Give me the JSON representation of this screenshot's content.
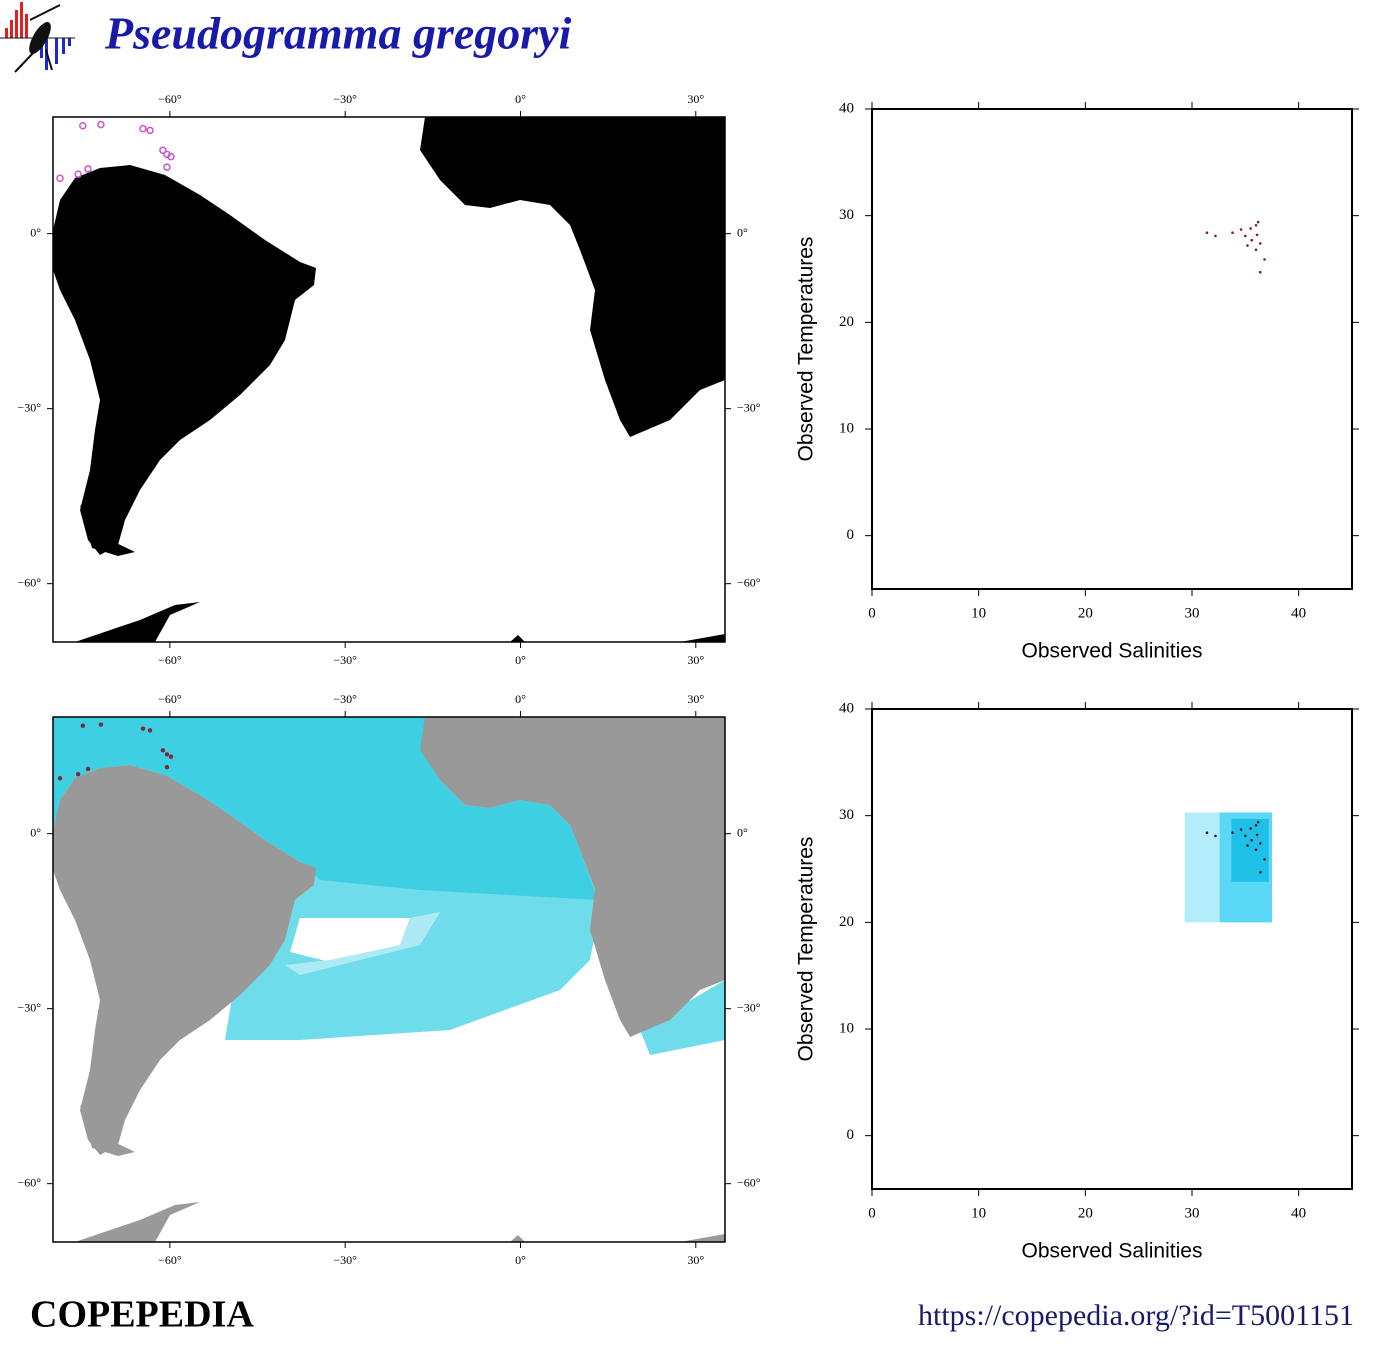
{
  "header": {
    "title": "Pseudogramma gregoryi"
  },
  "chart_data": [
    {
      "type": "map",
      "xlim": [
        -80,
        35
      ],
      "ylim": [
        -70,
        20
      ],
      "xticks": [
        {
          "value": -60,
          "label": "−60°"
        },
        {
          "value": -30,
          "label": "−30°"
        },
        {
          "value": 0,
          "label": "0°"
        },
        {
          "value": 30,
          "label": "30°"
        }
      ],
      "yticks": [
        {
          "value": 0,
          "label": "0°"
        },
        {
          "value": -30,
          "label": "−30°"
        },
        {
          "value": -60,
          "label": "−60°"
        }
      ],
      "marker": "open",
      "series": [
        {
          "color": "#cc55cc",
          "x": [
            -74.9,
            -71.8,
            -64.6,
            -63.4,
            -61.2,
            -60.5,
            -59.8,
            -60.5,
            -74.0,
            -75.7,
            -78.8
          ],
          "y": [
            18.5,
            18.7,
            18.0,
            17.7,
            14.3,
            13.6,
            13.2,
            11.4,
            11.1,
            10.2,
            9.5
          ]
        }
      ]
    },
    {
      "type": "map",
      "xlim": [
        -80,
        35
      ],
      "ylim": [
        -70,
        20
      ],
      "xticks": [
        {
          "value": -60,
          "label": "−60°"
        },
        {
          "value": -30,
          "label": "−30°"
        },
        {
          "value": 0,
          "label": "0°"
        },
        {
          "value": 30,
          "label": "30°"
        }
      ],
      "yticks": [
        {
          "value": 0,
          "label": "0°"
        },
        {
          "value": -30,
          "label": "−30°"
        },
        {
          "value": -60,
          "label": "−60°"
        }
      ],
      "marker": "filled",
      "series": [
        {
          "color": "#7a2a3a",
          "x": [
            -74.9,
            -71.8,
            -64.6,
            -63.4,
            -61.2,
            -60.5,
            -59.8,
            -60.5,
            -74.0,
            -75.7,
            -78.8
          ],
          "y": [
            18.5,
            18.7,
            18.0,
            17.7,
            14.3,
            13.6,
            13.2,
            11.4,
            11.1,
            10.2,
            9.5
          ]
        }
      ]
    },
    {
      "type": "scatter",
      "xlabel": "Observed Salinities",
      "ylabel": "Observed Temperatures",
      "xlim": [
        0,
        45
      ],
      "ylim": [
        -5,
        40
      ],
      "xticks": [
        0,
        10,
        20,
        30,
        40
      ],
      "yticks": [
        0,
        10,
        20,
        30,
        40
      ],
      "series": [
        {
          "color": "#8b1a1a",
          "x": [
            31.4,
            32.2,
            33.8,
            34.6,
            35.0,
            35.5,
            36.0,
            36.2,
            35.6,
            35.2,
            36.1,
            36.4,
            36.0,
            36.8,
            36.4
          ],
          "y": [
            28.4,
            28.1,
            28.4,
            28.7,
            28.1,
            28.8,
            29.1,
            29.4,
            27.7,
            27.2,
            28.2,
            27.4,
            26.8,
            25.9,
            24.7
          ]
        }
      ]
    },
    {
      "type": "scatter",
      "xlabel": "Observed Salinities",
      "ylabel": "Observed Temperatures",
      "xlim": [
        0,
        45
      ],
      "ylim": [
        -5,
        40
      ],
      "xticks": [
        0,
        10,
        20,
        30,
        40
      ],
      "yticks": [
        0,
        10,
        20,
        30,
        40
      ],
      "boxes": [
        {
          "xmin": 29.3,
          "xmax": 37.5,
          "ymin": 20.0,
          "ymax": 30.3,
          "color": "#b3ecfa"
        },
        {
          "xmin": 32.6,
          "xmax": 37.5,
          "ymin": 20.0,
          "ymax": 30.3,
          "color": "#5ad8f5"
        },
        {
          "xmin": 33.7,
          "xmax": 37.2,
          "ymin": 23.8,
          "ymax": 29.7,
          "color": "#1ec0e8"
        }
      ],
      "series": [
        {
          "color": "#3a1a1a",
          "x": [
            31.4,
            32.2,
            33.8,
            34.6,
            35.0,
            35.5,
            36.0,
            36.2,
            35.6,
            35.2,
            36.1,
            36.4,
            36.0,
            36.8,
            36.4
          ],
          "y": [
            28.4,
            28.1,
            28.4,
            28.7,
            28.1,
            28.8,
            29.1,
            29.4,
            27.7,
            27.2,
            28.2,
            27.4,
            26.8,
            25.9,
            24.7
          ]
        }
      ]
    }
  ],
  "footer": {
    "left": "COPEPEDIA",
    "right": "https://copepedia.org/?id=T5001151"
  }
}
